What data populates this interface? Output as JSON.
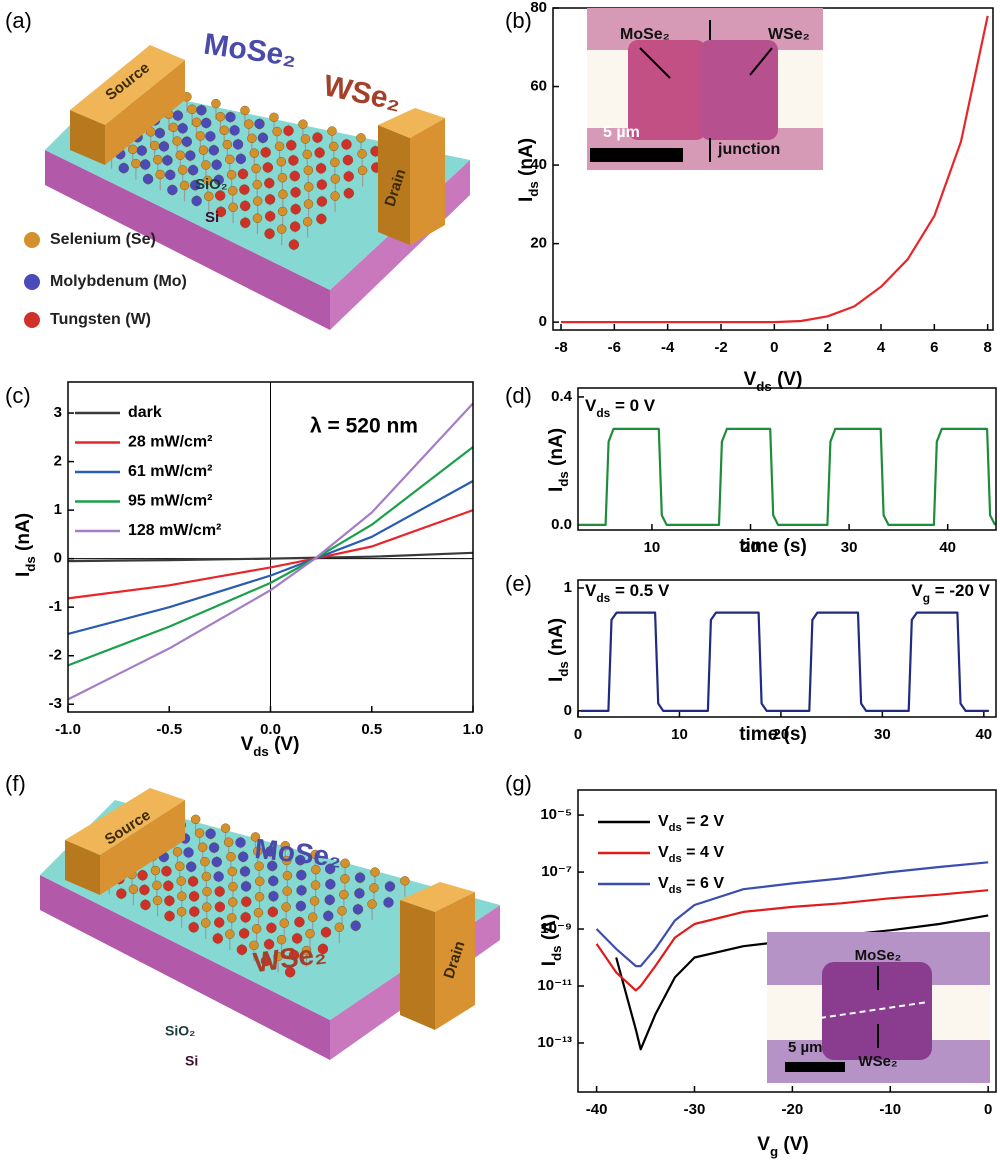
{
  "panel_labels": [
    "(a)",
    "(b)",
    "(c)",
    "(d)",
    "(e)",
    "(f)",
    "(g)"
  ],
  "illustration_a": {
    "source": "Source",
    "drain": "Drain",
    "material_1": "MoSe₂",
    "material_2": "WSe₂",
    "oxide": "SiO₂",
    "substrate": "Si",
    "legend": [
      "Selenium (Se)",
      "Molybdenum (Mo)",
      "Tungsten (W)"
    ]
  },
  "illustration_f": {
    "source": "Source",
    "drain": "Drain",
    "material_1": "MoSe₂",
    "material_2": "WSe₂",
    "oxide": "SiO₂",
    "substrate": "Si"
  },
  "inset_b": {
    "material_1": "MoSe₂",
    "material_2": "WSe₂",
    "junction": "junction",
    "scale": "5 µm"
  },
  "inset_g": {
    "material_1": "MoSe₂",
    "material_2": "WSe₂",
    "scale": "5 µm"
  },
  "chart_data": [
    {
      "type": "line",
      "xlabel": [
        "V",
        "ds",
        " (V)"
      ],
      "ylabel": [
        "I",
        "ds",
        " (nA)"
      ],
      "x": [
        -8,
        -6,
        -4,
        -2,
        0,
        1,
        2,
        3,
        4,
        5,
        6,
        7,
        8
      ],
      "series": [
        {
          "color": "#e8262a",
          "values": [
            0,
            0,
            0,
            0,
            0,
            0.3,
            1.5,
            4,
            9,
            16,
            27,
            46,
            78
          ]
        }
      ],
      "xlim": [
        -8.3,
        8.2
      ],
      "ylim": [
        -2,
        80
      ],
      "xticks": [
        -8,
        -6,
        -4,
        -2,
        0,
        2,
        4,
        6,
        8
      ],
      "yticks": [
        0,
        20,
        40,
        60,
        80
      ]
    },
    {
      "type": "line",
      "xlabel": [
        "V",
        "ds",
        " (V)"
      ],
      "ylabel": [
        "I",
        "ds",
        " (nA)"
      ],
      "annotations": [
        "λ = 520 nm"
      ],
      "zero_lines": true,
      "legend": "upper left",
      "x": [
        -1,
        -0.5,
        0,
        0.22,
        0.5,
        1
      ],
      "series": [
        {
          "name": "dark",
          "color": "#3a3a3a",
          "values": [
            -0.05,
            -0.03,
            0,
            0.02,
            0.04,
            0.12
          ]
        },
        {
          "name": "28 mW/cm²",
          "color": "#e8262a",
          "values": [
            -0.82,
            -0.55,
            -0.18,
            0,
            0.25,
            1.0
          ]
        },
        {
          "name": "61 mW/cm²",
          "color": "#2a5db0",
          "values": [
            -1.55,
            -1.0,
            -0.35,
            0,
            0.45,
            1.6
          ]
        },
        {
          "name": "95 mW/cm²",
          "color": "#1aa04a",
          "values": [
            -2.2,
            -1.4,
            -0.5,
            0,
            0.7,
            2.3
          ]
        },
        {
          "name": "128 mW/cm²",
          "color": "#a57dc6",
          "values": [
            -2.9,
            -1.85,
            -0.65,
            0,
            0.95,
            3.2
          ]
        }
      ],
      "xlim": [
        -1,
        1
      ],
      "ylim": [
        -3.16,
        3.64
      ],
      "xticks": [
        {
          "value": -1,
          "label": "-1.0"
        },
        -0.5,
        {
          "value": 0,
          "label": "0.0"
        },
        0.5,
        {
          "value": 1,
          "label": "1.0"
        }
      ],
      "yticks": [
        -3,
        -2,
        -1,
        0,
        1,
        2,
        3
      ]
    },
    {
      "type": "line",
      "xlabel": "time (s)",
      "ylabel": [
        "I",
        "ds",
        " (nA)"
      ],
      "annotations": [
        [
          "V",
          "ds",
          " = 0 V"
        ]
      ],
      "x": [
        2.5,
        5.3,
        5.6,
        6.1,
        10.7,
        11.0,
        11.5,
        16.8,
        17.1,
        17.6,
        22.0,
        22.3,
        22.8,
        27.8,
        28.1,
        28.6,
        33.2,
        33.5,
        34.0,
        38.6,
        38.9,
        39.4,
        44.0,
        44.3,
        44.8
      ],
      "series": [
        {
          "color": "#1e8c3a",
          "values": [
            0,
            0,
            0.26,
            0.3,
            0.3,
            0.03,
            0,
            0,
            0.26,
            0.3,
            0.3,
            0.03,
            0,
            0,
            0.26,
            0.3,
            0.3,
            0.03,
            0,
            0,
            0.26,
            0.3,
            0.3,
            0.03,
            0
          ]
        }
      ],
      "xlim": [
        2.5,
        44.9
      ],
      "ylim": [
        -0.016,
        0.428
      ],
      "xticks": [
        10,
        20,
        30,
        40
      ],
      "yticks": [
        {
          "value": 0,
          "label": "0.0"
        },
        0.4
      ]
    },
    {
      "type": "line",
      "xlabel": "time (s)",
      "ylabel": [
        "I",
        "ds",
        " (nA)"
      ],
      "annotations": [
        [
          "V",
          "ds",
          " = 0.5 V"
        ],
        [
          "V",
          "g",
          " = -20 V"
        ]
      ],
      "x": [
        0.3,
        3.0,
        3.3,
        3.8,
        7.6,
        7.9,
        8.4,
        12.8,
        13.1,
        13.6,
        17.8,
        18.1,
        18.6,
        22.8,
        23.1,
        23.6,
        27.6,
        27.9,
        28.4,
        32.6,
        32.9,
        33.4,
        37.4,
        37.7,
        38.2,
        40.5
      ],
      "series": [
        {
          "color": "#1f2a80",
          "values": [
            0,
            0,
            0.74,
            0.8,
            0.8,
            0.06,
            0,
            0,
            0.74,
            0.8,
            0.8,
            0.06,
            0,
            0,
            0.74,
            0.8,
            0.8,
            0.06,
            0,
            0,
            0.74,
            0.8,
            0.8,
            0.06,
            0,
            0
          ]
        }
      ],
      "xlim": [
        0,
        41.2
      ],
      "ylim": [
        -0.05,
        1.065
      ],
      "xticks": [
        0,
        10,
        20,
        30,
        40
      ],
      "yticks": [
        0,
        1
      ]
    },
    {
      "type": "line",
      "log_scale": true,
      "legend": "upper left",
      "xlabel": [
        "V",
        "g",
        " (V)"
      ],
      "ylabel": [
        "I",
        "ds",
        " (A)"
      ],
      "x": [
        -40,
        -38,
        -36,
        -35.5,
        -34,
        -32,
        -30,
        -25,
        -20,
        -15,
        -10,
        -5,
        0
      ],
      "series": [
        {
          "name": [
            "V",
            "ds",
            " = 2 V"
          ],
          "color": "#000000",
          "values": [
            null,
            1e-10,
            3e-13,
            6e-14,
            1e-12,
            2e-11,
            1e-10,
            2.5e-10,
            4e-10,
            6e-10,
            9e-10,
            1.5e-09,
            3e-09
          ]
        },
        {
          "name": [
            "V",
            "ds",
            " = 4 V"
          ],
          "color": "#e11a1a",
          "values": [
            3e-10,
            3e-11,
            7e-12,
            1e-11,
            5e-11,
            5e-10,
            1.5e-09,
            4e-09,
            6e-09,
            8e-09,
            1.2e-08,
            1.6e-08,
            2.3e-08
          ]
        },
        {
          "name": [
            "V",
            "ds",
            " = 6 V"
          ],
          "color": "#3a4db0",
          "values": [
            1e-09,
            2e-10,
            5e-11,
            5e-11,
            2e-10,
            2e-09,
            7e-09,
            2.5e-08,
            4e-08,
            6e-08,
            1e-07,
            1.5e-07,
            2.2e-07
          ]
        }
      ],
      "xlim": [
        -41.9,
        0.8
      ],
      "ylim": [
        1.9e-15,
        7.6e-05
      ],
      "xticks": [
        -40,
        -30,
        -20,
        -10,
        0
      ],
      "yticks": [
        {
          "value": 1e-13,
          "label": "10⁻¹³"
        },
        {
          "value": 1e-11,
          "label": "10⁻¹¹"
        },
        {
          "value": 1e-09,
          "label": "10⁻⁹"
        },
        {
          "value": 1e-07,
          "label": "10⁻⁷"
        },
        {
          "value": 1e-05,
          "label": "10⁻⁵"
        }
      ]
    }
  ]
}
